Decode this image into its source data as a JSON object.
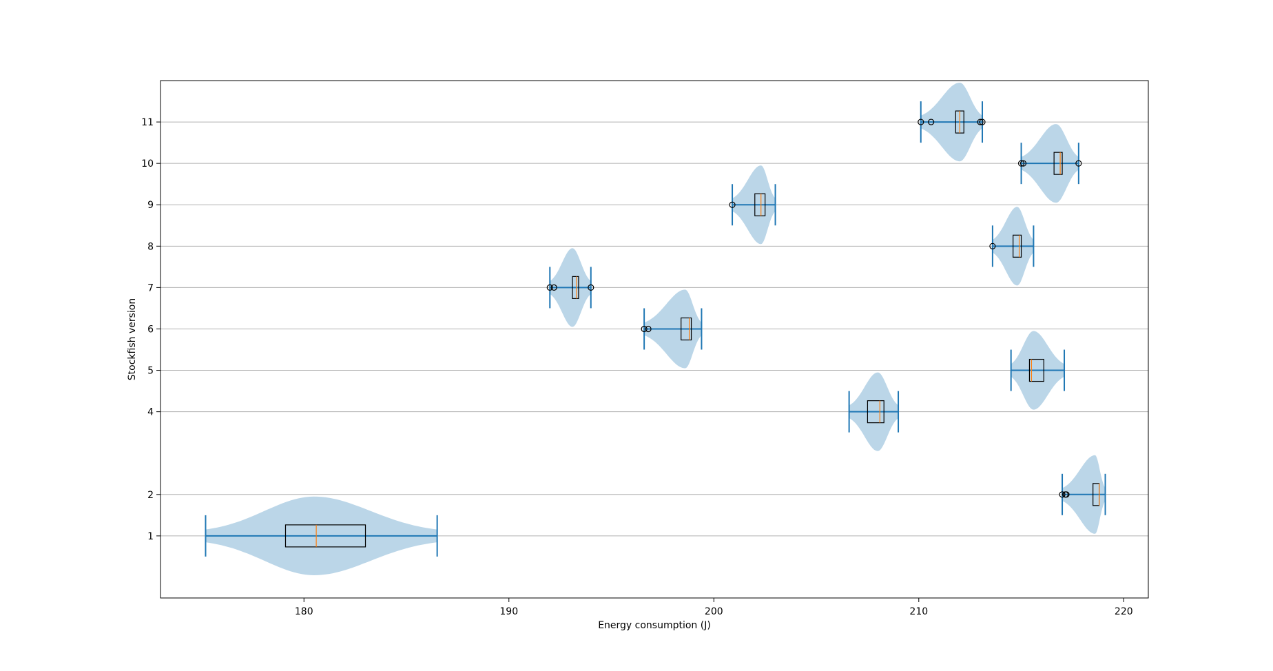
{
  "chart_data": {
    "type": "violin",
    "orientation": "horizontal",
    "title": "",
    "xlabel": "Energy consumption (J)",
    "ylabel": "Stockfish version",
    "xlim": [
      173,
      221.2
    ],
    "ylim": [
      -0.5,
      12
    ],
    "xticks": [
      180,
      190,
      200,
      210,
      220
    ],
    "yticks": [
      1,
      2,
      4,
      5,
      6,
      7,
      8,
      9,
      10,
      11
    ],
    "grid": "horizontal",
    "colors": {
      "violin_fill": "#1f77b4",
      "violin_alpha": 0.3,
      "whisker_line": "#1f77b4",
      "median_line": "#ff7f0e",
      "box_edge": "#000000",
      "grid": "#b0b0b0"
    },
    "series": [
      {
        "version": 1,
        "min": 175.2,
        "max": 186.5,
        "q1": 179.1,
        "median": 180.6,
        "q3": 183.0,
        "halfwidth": 0.95,
        "peak": 180.5,
        "outliers": []
      },
      {
        "version": 2,
        "min": 217.0,
        "max": 219.1,
        "q1": 218.5,
        "median": 218.8,
        "q3": 218.8,
        "halfwidth": 0.95,
        "peak": 218.6,
        "outliers": [
          217.0,
          217.15,
          217.2
        ]
      },
      {
        "version": 4,
        "min": 206.6,
        "max": 209.0,
        "q1": 207.5,
        "median": 208.1,
        "q3": 208.3,
        "halfwidth": 0.95,
        "peak": 208.0,
        "outliers": []
      },
      {
        "version": 5,
        "min": 214.5,
        "max": 217.1,
        "q1": 215.4,
        "median": 215.5,
        "q3": 216.1,
        "halfwidth": 0.95,
        "peak": 215.6,
        "outliers": []
      },
      {
        "version": 6,
        "min": 196.6,
        "max": 199.4,
        "q1": 198.4,
        "median": 198.8,
        "q3": 198.9,
        "halfwidth": 0.95,
        "peak": 198.6,
        "outliers": [
          196.6,
          196.8
        ]
      },
      {
        "version": 7,
        "min": 192.0,
        "max": 194.0,
        "q1": 193.1,
        "median": 193.3,
        "q3": 193.4,
        "halfwidth": 0.95,
        "peak": 193.1,
        "outliers": [
          192.0,
          192.2,
          194.0
        ]
      },
      {
        "version": 8,
        "min": 213.6,
        "max": 215.6,
        "q1": 214.6,
        "median": 214.9,
        "q3": 215.0,
        "halfwidth": 0.95,
        "peak": 214.8,
        "outliers": [
          213.6
        ]
      },
      {
        "version": 9,
        "min": 200.9,
        "max": 203.0,
        "q1": 202.0,
        "median": 202.3,
        "q3": 202.5,
        "halfwidth": 0.95,
        "peak": 202.3,
        "outliers": [
          200.9
        ]
      },
      {
        "version": 10,
        "min": 215.0,
        "max": 217.8,
        "q1": 216.6,
        "median": 216.9,
        "q3": 217.0,
        "halfwidth": 0.95,
        "peak": 216.7,
        "outliers": [
          215.0,
          215.1,
          217.8
        ]
      },
      {
        "version": 11,
        "min": 210.1,
        "max": 213.1,
        "q1": 211.8,
        "median": 212.0,
        "q3": 212.2,
        "halfwidth": 0.95,
        "peak": 212.0,
        "outliers": [
          210.1,
          210.6,
          213.0,
          213.1
        ]
      }
    ]
  }
}
